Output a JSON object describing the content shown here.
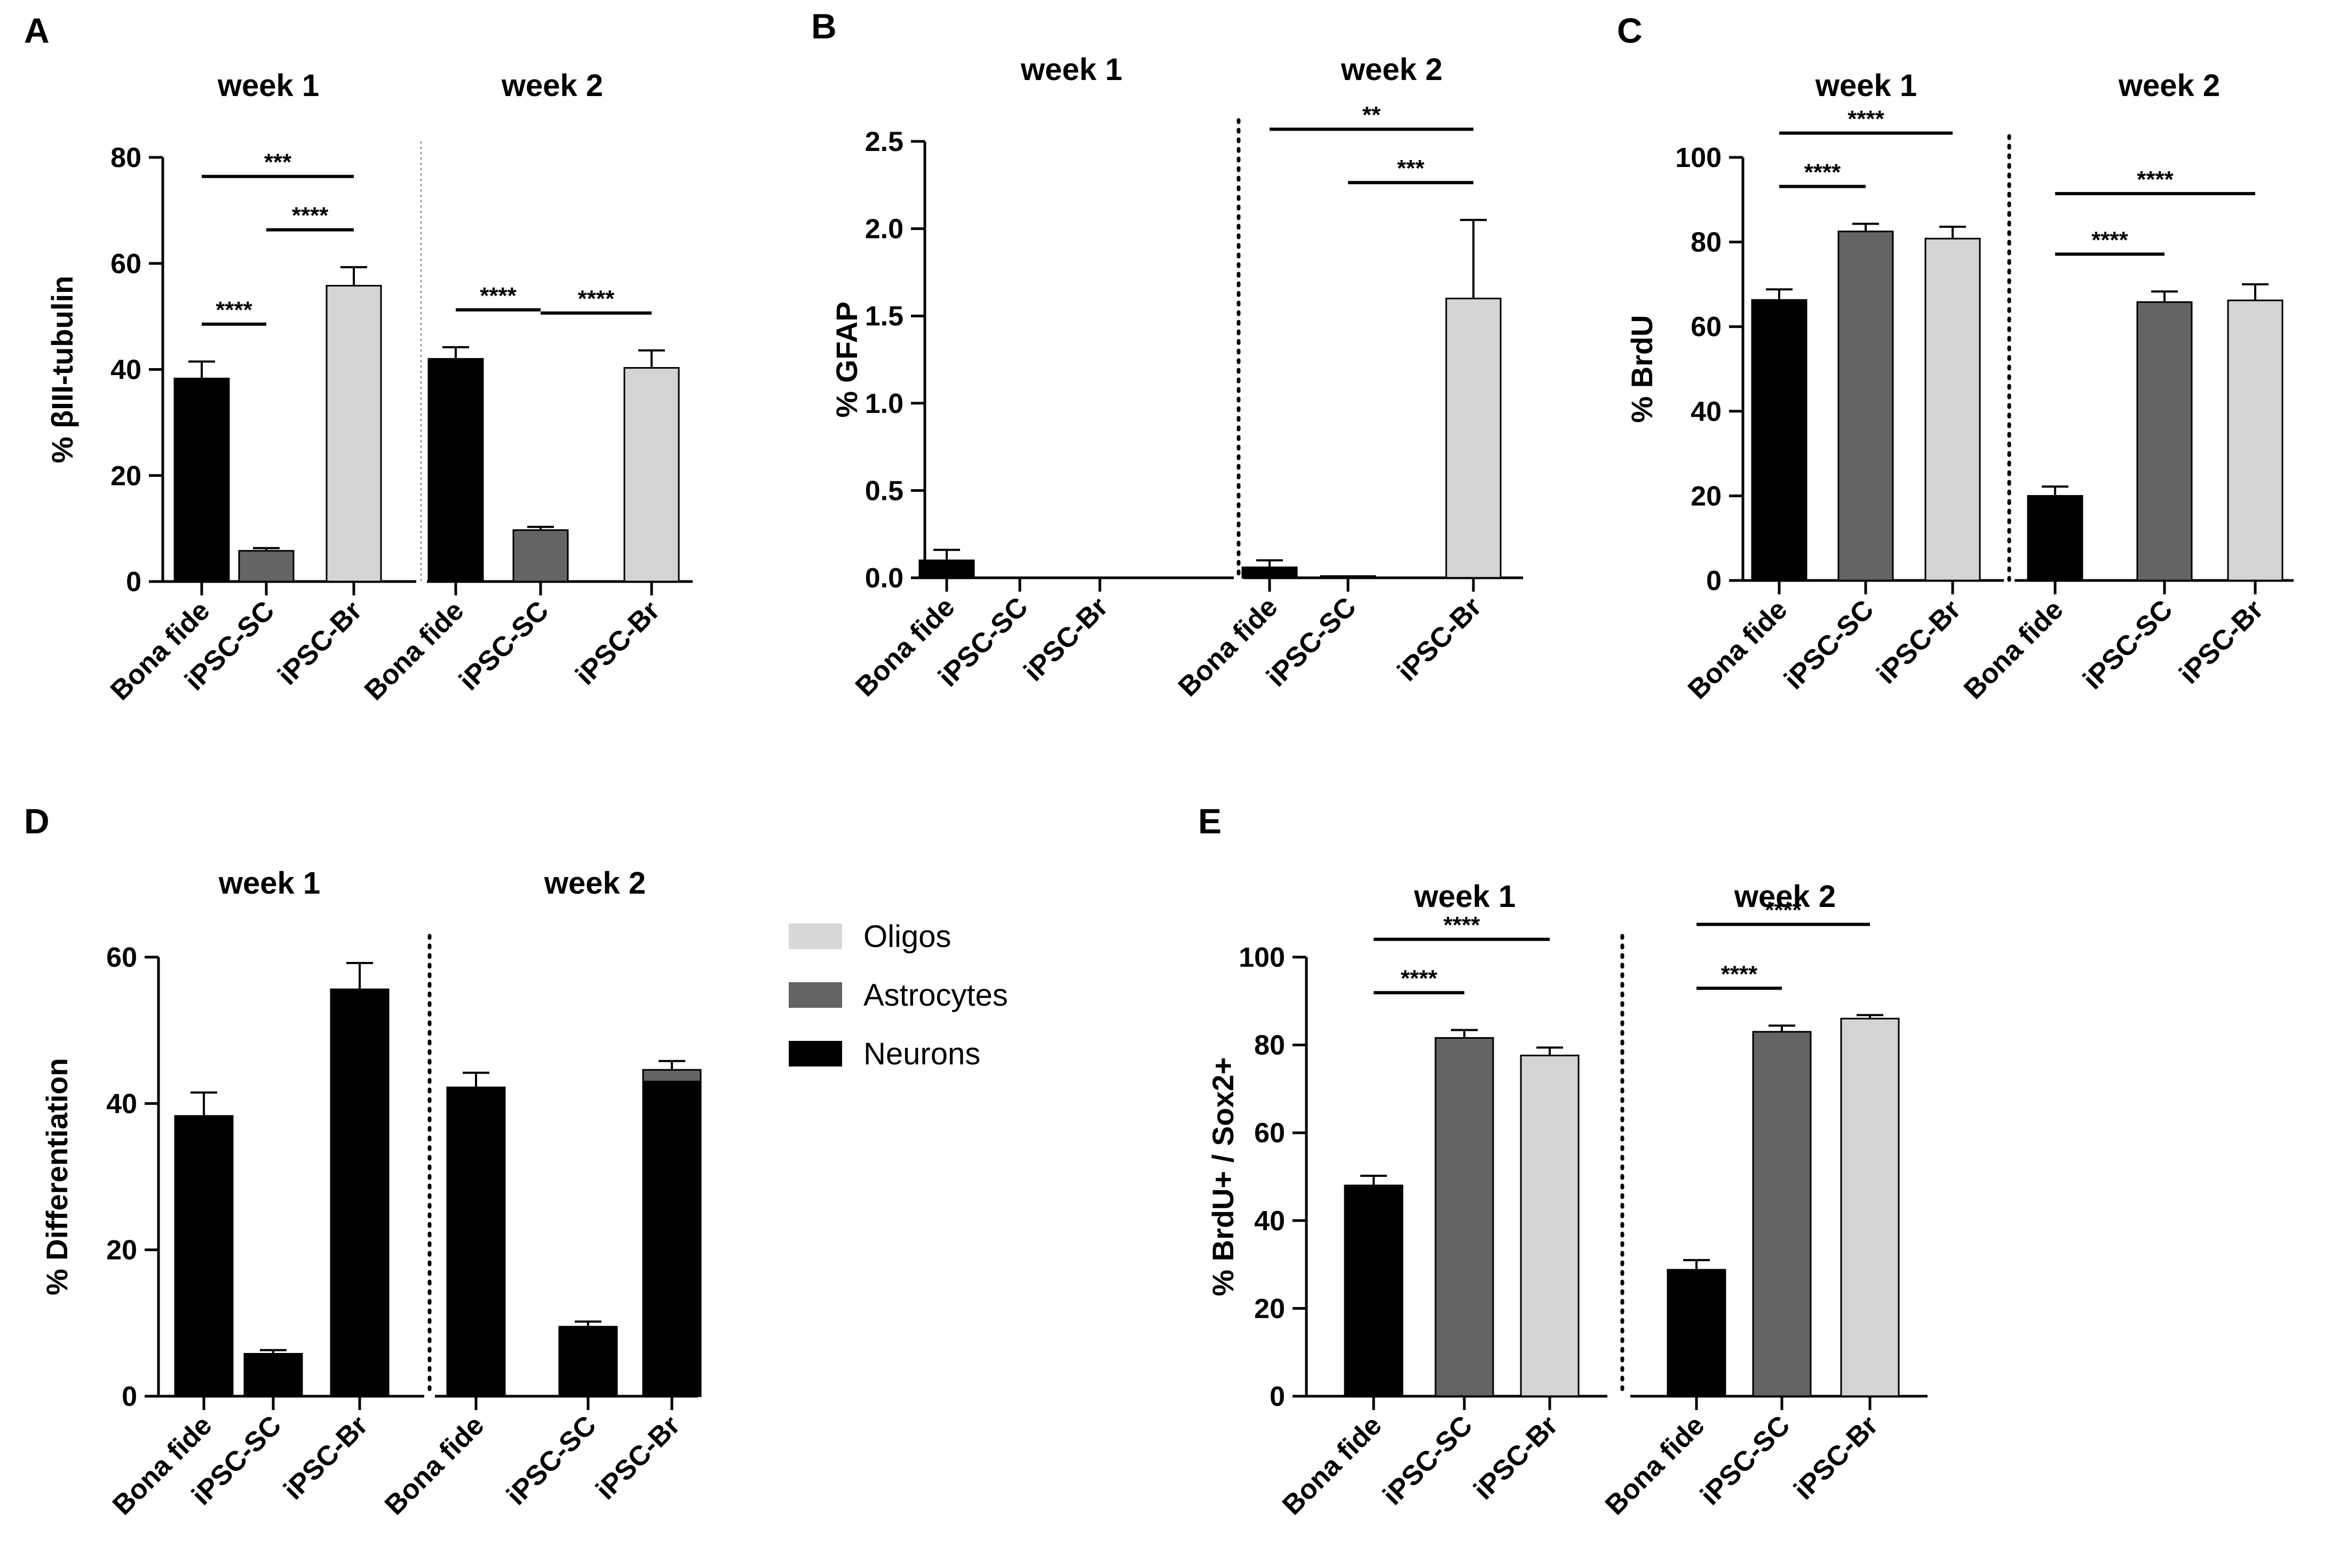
{
  "colors": {
    "bona_fide": "#000000",
    "ipsc_sc": "#646464",
    "ipsc_br": "#d4d4d4",
    "oligos": "#d8d8d8",
    "astrocytes": "#646464",
    "neurons": "#000000"
  },
  "chart_data": [
    {
      "panel": "A",
      "type": "bar",
      "ylabel": "% βIII-tubulin",
      "ylim": [
        0,
        80
      ],
      "yticks": [
        "0",
        "20",
        "40",
        "60",
        "80"
      ],
      "categories": [
        "Bona fide",
        "iPSC-SC",
        "iPSC-Br"
      ],
      "groups": [
        {
          "title": "week 1",
          "values": [
            38.3,
            5.8,
            55.8
          ],
          "errors": [
            3.2,
            0.5,
            3.5
          ],
          "sig": [
            {
              "from": 0,
              "to": 1,
              "label": "****"
            },
            {
              "from": 1,
              "to": 2,
              "label": "****"
            },
            {
              "from": 0,
              "to": 2,
              "label": "***"
            }
          ]
        },
        {
          "title": "week 2",
          "values": [
            42.0,
            9.7,
            40.3
          ],
          "errors": [
            2.2,
            0.6,
            3.3
          ],
          "sig": [
            {
              "from": 0,
              "to": 1,
              "label": "****"
            },
            {
              "from": 1,
              "to": 2,
              "label": "****"
            }
          ]
        }
      ]
    },
    {
      "panel": "B",
      "type": "bar",
      "ylabel": "% GFAP",
      "ylim": [
        0,
        2.5
      ],
      "yticks": [
        "0.0",
        "0.5",
        "1.0",
        "1.5",
        "2.0",
        "2.5"
      ],
      "categories": [
        "Bona fide",
        "iPSC-SC",
        "iPSC-Br"
      ],
      "groups": [
        {
          "title": "week 1",
          "values": [
            0.1,
            0.0,
            0.0
          ],
          "errors": [
            0.06,
            0,
            0
          ],
          "sig": []
        },
        {
          "title": "week 2",
          "values": [
            0.06,
            0.01,
            1.6
          ],
          "errors": [
            0.04,
            0,
            0.45
          ],
          "sig": [
            {
              "from": 1,
              "to": 2,
              "label": "***"
            },
            {
              "from": 0,
              "to": 2,
              "label": "**"
            }
          ]
        }
      ]
    },
    {
      "panel": "C",
      "type": "bar",
      "ylabel": "% BrdU",
      "ylim": [
        0,
        100
      ],
      "yticks": [
        "0",
        "20",
        "40",
        "60",
        "80",
        "100"
      ],
      "categories": [
        "Bona fide",
        "iPSC-SC",
        "iPSC-Br"
      ],
      "groups": [
        {
          "title": "week 1",
          "values": [
            66.3,
            82.5,
            80.8
          ],
          "errors": [
            2.5,
            1.8,
            2.8
          ],
          "sig": [
            {
              "from": 0,
              "to": 1,
              "label": "****"
            },
            {
              "from": 0,
              "to": 2,
              "label": "****"
            }
          ]
        },
        {
          "title": "week 2",
          "values": [
            20.0,
            65.8,
            66.2
          ],
          "errors": [
            2.2,
            2.5,
            3.8
          ],
          "sig": [
            {
              "from": 0,
              "to": 1,
              "label": "****"
            },
            {
              "from": 0,
              "to": 2,
              "label": "****"
            }
          ]
        }
      ]
    },
    {
      "panel": "D",
      "type": "stacked_bar",
      "ylabel": "% Differentiation",
      "ylim": [
        0,
        60
      ],
      "yticks": [
        "0",
        "20",
        "40",
        "60"
      ],
      "categories": [
        "Bona fide",
        "iPSC-SC",
        "iPSC-Br"
      ],
      "legend": [
        "Oligos",
        "Astrocytes",
        "Neurons"
      ],
      "groups": [
        {
          "title": "week 1",
          "neurons": [
            38.3,
            5.8,
            55.6
          ],
          "astrocytes": [
            0,
            0,
            0
          ],
          "oligos": [
            0,
            0,
            0
          ],
          "errors": [
            3.2,
            0.5,
            3.6
          ]
        },
        {
          "title": "week 2",
          "neurons": [
            42.1,
            9.5,
            43.0
          ],
          "astrocytes": [
            0.1,
            0.0,
            1.6
          ],
          "oligos": [
            0,
            0,
            0
          ],
          "errors": [
            2.0,
            0.7,
            1.2
          ]
        }
      ]
    },
    {
      "panel": "E",
      "type": "bar",
      "ylabel": "% BrdU+ / Sox2+",
      "ylim": [
        0,
        100
      ],
      "yticks": [
        "0",
        "20",
        "40",
        "60",
        "80",
        "100"
      ],
      "categories": [
        "Bona fide",
        "iPSC-SC",
        "iPSC-Br"
      ],
      "groups": [
        {
          "title": "week 1",
          "values": [
            48.0,
            81.6,
            77.6
          ],
          "errors": [
            2.2,
            1.8,
            1.8
          ],
          "sig": [
            {
              "from": 0,
              "to": 1,
              "label": "****"
            },
            {
              "from": 0,
              "to": 2,
              "label": "****"
            }
          ]
        },
        {
          "title": "week 2",
          "values": [
            28.8,
            83.0,
            86.0
          ],
          "errors": [
            2.2,
            1.4,
            0.8
          ],
          "sig": [
            {
              "from": 0,
              "to": 1,
              "label": "****"
            },
            {
              "from": 0,
              "to": 2,
              "label": "****"
            }
          ]
        }
      ]
    }
  ]
}
